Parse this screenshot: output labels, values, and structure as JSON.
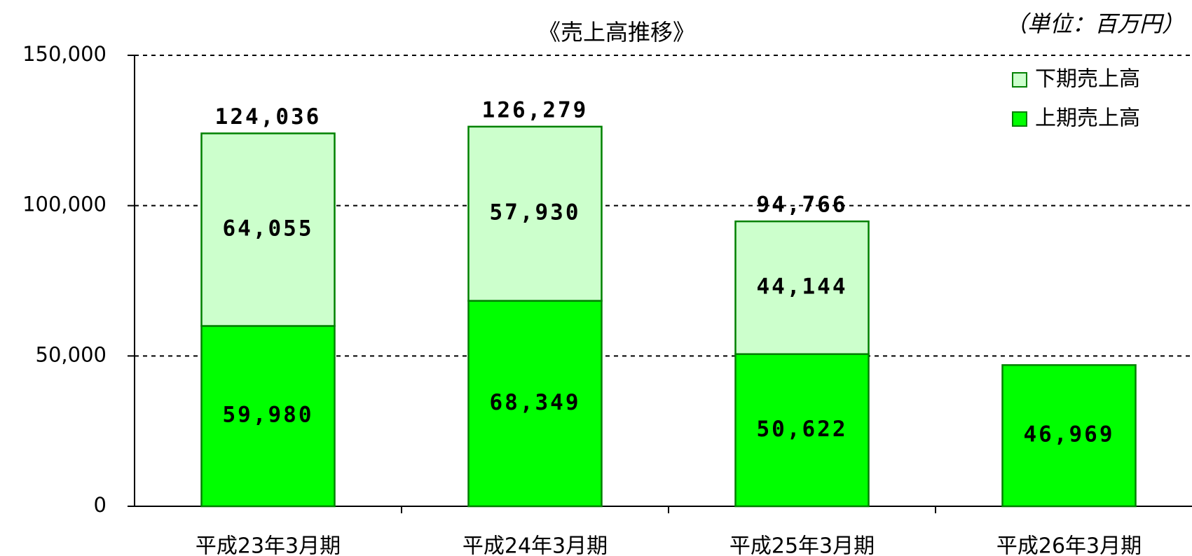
{
  "chart_data": {
    "type": "stacked_bar",
    "title": "《売上高推移》",
    "unit_note": "（単位：百万円）",
    "categories": [
      "平成23年3月期",
      "平成24年3月期",
      "平成25年3月期",
      "平成26年3月期"
    ],
    "series": [
      {
        "name": "上期売上高",
        "color": "#00ff00",
        "values": [
          59980,
          68349,
          50622,
          46969
        ],
        "value_labels": [
          "59,980",
          "68,349",
          "50,622",
          "46,969"
        ]
      },
      {
        "name": "下期売上高",
        "color": "#ccffcc",
        "values": [
          64055,
          57930,
          44144,
          null
        ],
        "value_labels": [
          "64,055",
          "57,930",
          "44,144",
          null
        ]
      }
    ],
    "totals": {
      "values": [
        124036,
        126279,
        94766,
        null
      ],
      "value_labels": [
        "124,036",
        "126,279",
        "94,766",
        null
      ]
    },
    "ylim": [
      0,
      150000
    ],
    "yticks": [
      0,
      {
        "value": 50000,
        "label": "50,000"
      },
      {
        "value": 100000,
        "label": "100,000"
      },
      {
        "value": 150000,
        "label": "150,000"
      }
    ],
    "grid": true,
    "legend_position": "upper right"
  }
}
